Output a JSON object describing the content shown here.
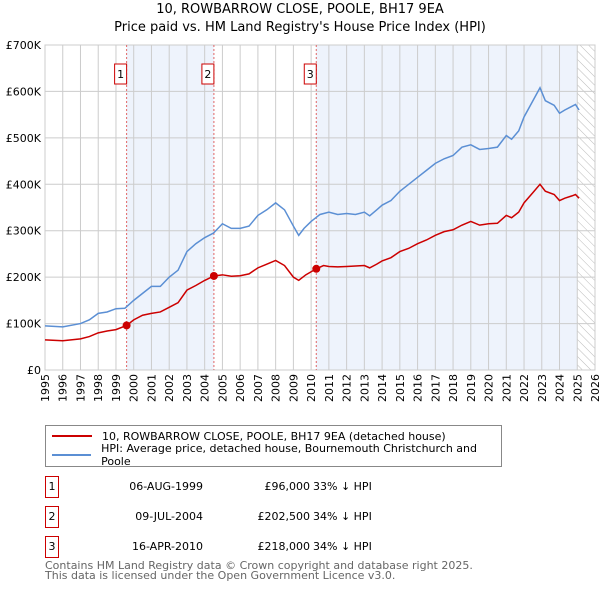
{
  "chart_data": {
    "type": "line",
    "title": "10, ROWBARROW CLOSE, POOLE, BH17 9EA",
    "subtitle": "Price paid vs. HM Land Registry's House Price Index (HPI)",
    "xlim": [
      1995,
      2026
    ],
    "ylim": [
      0,
      700000
    ],
    "y_ticks": [
      "£0",
      "£100K",
      "£200K",
      "£300K",
      "£400K",
      "£500K",
      "£600K",
      "£700K"
    ],
    "x_ticks": [
      "1995",
      "1996",
      "1997",
      "1998",
      "1999",
      "2000",
      "2001",
      "2002",
      "2003",
      "2004",
      "2005",
      "2006",
      "2007",
      "2008",
      "2009",
      "2010",
      "2011",
      "2012",
      "2013",
      "2014",
      "2015",
      "2016",
      "2017",
      "2018",
      "2019",
      "2020",
      "2021",
      "2022",
      "2023",
      "2024",
      "2025",
      "2026"
    ],
    "grid": true,
    "series": [
      {
        "name": "10, ROWBARROW CLOSE, POOLE, BH17 9EA (detached house)",
        "color": "#cc0000",
        "points": [
          [
            1995,
            65
          ],
          [
            1996,
            63
          ],
          [
            1997,
            67
          ],
          [
            1997.5,
            72
          ],
          [
            1998,
            80
          ],
          [
            1998.5,
            84
          ],
          [
            1999,
            87
          ],
          [
            1999.6,
            96
          ],
          [
            2000,
            108
          ],
          [
            2000.5,
            118
          ],
          [
            2001,
            122
          ],
          [
            2001.5,
            125
          ],
          [
            2002,
            135
          ],
          [
            2002.5,
            145
          ],
          [
            2003,
            172
          ],
          [
            2003.5,
            182
          ],
          [
            2004,
            193
          ],
          [
            2004.52,
            202.5
          ],
          [
            2005,
            205
          ],
          [
            2005.5,
            202
          ],
          [
            2006,
            203
          ],
          [
            2006.5,
            207
          ],
          [
            2007,
            220
          ],
          [
            2007.5,
            228
          ],
          [
            2008,
            236
          ],
          [
            2008.5,
            225
          ],
          [
            2009,
            200
          ],
          [
            2009.3,
            193
          ],
          [
            2009.7,
            205
          ],
          [
            2010.29,
            218
          ],
          [
            2010.7,
            225
          ],
          [
            2011,
            223
          ],
          [
            2011.5,
            222
          ],
          [
            2012,
            223
          ],
          [
            2012.5,
            224
          ],
          [
            2013,
            225
          ],
          [
            2013.3,
            220
          ],
          [
            2013.7,
            228
          ],
          [
            2014,
            235
          ],
          [
            2014.5,
            242
          ],
          [
            2015,
            255
          ],
          [
            2015.5,
            262
          ],
          [
            2016,
            272
          ],
          [
            2016.5,
            280
          ],
          [
            2017,
            290
          ],
          [
            2017.5,
            298
          ],
          [
            2018,
            302
          ],
          [
            2018.5,
            312
          ],
          [
            2019,
            320
          ],
          [
            2019.5,
            312
          ],
          [
            2020,
            315
          ],
          [
            2020.5,
            316
          ],
          [
            2021,
            333
          ],
          [
            2021.3,
            328
          ],
          [
            2021.7,
            340
          ],
          [
            2022,
            360
          ],
          [
            2022.5,
            382
          ],
          [
            2022.9,
            400
          ],
          [
            2023.2,
            385
          ],
          [
            2023.7,
            378
          ],
          [
            2024,
            365
          ],
          [
            2024.3,
            370
          ],
          [
            2024.7,
            375
          ],
          [
            2024.9,
            378
          ],
          [
            2025.1,
            370
          ]
        ]
      },
      {
        "name": "HPI: Average price, detached house, Bournemouth Christchurch and Poole",
        "color": "#5b8fd4",
        "points": [
          [
            1995,
            95
          ],
          [
            1996,
            93
          ],
          [
            1997,
            100
          ],
          [
            1997.5,
            108
          ],
          [
            1998,
            122
          ],
          [
            1998.5,
            125
          ],
          [
            1999,
            132
          ],
          [
            1999.5,
            133
          ],
          [
            2000,
            150
          ],
          [
            2000.5,
            165
          ],
          [
            2001,
            180
          ],
          [
            2001.5,
            180
          ],
          [
            2002,
            200
          ],
          [
            2002.5,
            215
          ],
          [
            2003,
            255
          ],
          [
            2003.5,
            272
          ],
          [
            2004,
            285
          ],
          [
            2004.5,
            295
          ],
          [
            2005,
            315
          ],
          [
            2005.5,
            305
          ],
          [
            2006,
            305
          ],
          [
            2006.5,
            310
          ],
          [
            2007,
            333
          ],
          [
            2007.5,
            345
          ],
          [
            2008,
            360
          ],
          [
            2008.5,
            345
          ],
          [
            2009,
            310
          ],
          [
            2009.3,
            290
          ],
          [
            2009.6,
            305
          ],
          [
            2010,
            320
          ],
          [
            2010.5,
            335
          ],
          [
            2011,
            340
          ],
          [
            2011.5,
            335
          ],
          [
            2012,
            337
          ],
          [
            2012.5,
            335
          ],
          [
            2013,
            340
          ],
          [
            2013.3,
            332
          ],
          [
            2013.7,
            345
          ],
          [
            2014,
            355
          ],
          [
            2014.5,
            365
          ],
          [
            2015,
            385
          ],
          [
            2015.5,
            400
          ],
          [
            2016,
            415
          ],
          [
            2016.5,
            430
          ],
          [
            2017,
            445
          ],
          [
            2017.5,
            455
          ],
          [
            2018,
            462
          ],
          [
            2018.5,
            480
          ],
          [
            2019,
            485
          ],
          [
            2019.5,
            475
          ],
          [
            2020,
            477
          ],
          [
            2020.5,
            480
          ],
          [
            2021,
            505
          ],
          [
            2021.3,
            497
          ],
          [
            2021.7,
            515
          ],
          [
            2022,
            545
          ],
          [
            2022.5,
            580
          ],
          [
            2022.9,
            608
          ],
          [
            2023.2,
            580
          ],
          [
            2023.7,
            570
          ],
          [
            2024,
            553
          ],
          [
            2024.3,
            560
          ],
          [
            2024.7,
            568
          ],
          [
            2024.9,
            572
          ],
          [
            2025.1,
            560
          ]
        ]
      }
    ],
    "sales": [
      {
        "label": "1",
        "date": "06-AUG-1999",
        "x": 1999.6,
        "price": 96000,
        "price_text": "£96,000",
        "hpi": "33% ↓ HPI"
      },
      {
        "label": "2",
        "date": "09-JUL-2004",
        "x": 2004.52,
        "price": 202500,
        "price_text": "£202,500",
        "hpi": "34% ↓ HPI"
      },
      {
        "label": "3",
        "date": "16-APR-2010",
        "x": 2010.29,
        "price": 218000,
        "price_text": "£218,000",
        "hpi": "34% ↓ HPI"
      }
    ],
    "forecast_start": 2025.0
  },
  "footer": [
    "Contains HM Land Registry data © Crown copyright and database right 2025.",
    "This data is licensed under the Open Government Licence v3.0."
  ]
}
